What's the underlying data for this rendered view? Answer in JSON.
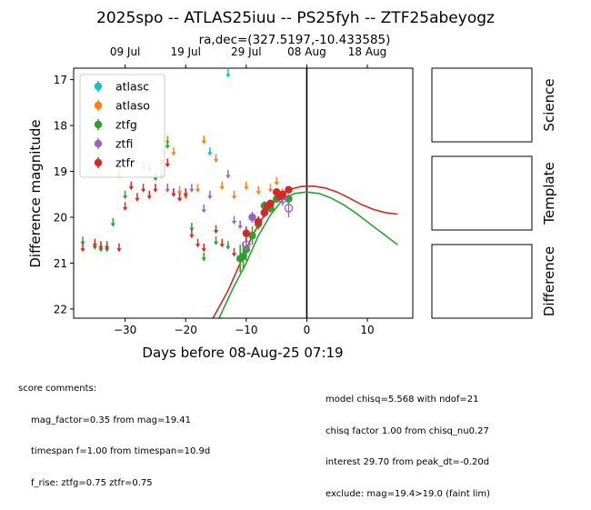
{
  "chart_data": {
    "type": "scatter",
    "title": "2025spo -- ATLAS25iuu -- PS25fyh -- ZTF25abeyogz",
    "subtitle": "ra,dec=(327.5197,-10.433585)",
    "xlabel": "Days before 08-Aug-25 07:19",
    "ylabel": "Difference magnitude",
    "xlim": [
      -38.5,
      17.5
    ],
    "ylim": [
      22.2,
      16.75
    ],
    "y_inverted": true,
    "x_ticks": [
      -30,
      -20,
      -10,
      0,
      10
    ],
    "x_tick_labels": [
      "−30",
      "−20",
      "−10",
      "0",
      "10"
    ],
    "y_ticks": [
      17,
      18,
      19,
      20,
      21,
      22
    ],
    "y_tick_labels": [
      "17",
      "18",
      "19",
      "20",
      "21",
      "22"
    ],
    "top_axis_ticks": [
      {
        "x": -30,
        "label": "09 Jul"
      },
      {
        "x": -20,
        "label": "19 Jul"
      },
      {
        "x": -10,
        "label": "29 Jul"
      },
      {
        "x": 0,
        "label": "08 Aug"
      },
      {
        "x": 10,
        "label": "18 Aug"
      }
    ],
    "vline_x": 0,
    "grid": false,
    "legend_position": "top-left",
    "series": [
      {
        "name": "atlasc",
        "color": "#17becf",
        "points": [
          {
            "x": -13.0,
            "y": 16.85,
            "kind": "upper_limit"
          },
          {
            "x": -16.0,
            "y": 18.55,
            "kind": "upper_limit"
          }
        ]
      },
      {
        "name": "atlaso",
        "color": "#ff7f0e",
        "points": [
          {
            "x": -31.0,
            "y": 19.05,
            "kind": "upper_limit"
          },
          {
            "x": -27.0,
            "y": 18.85,
            "kind": "upper_limit"
          },
          {
            "x": -26.0,
            "y": 18.9,
            "kind": "upper_limit"
          },
          {
            "x": -24.0,
            "y": 18.75,
            "kind": "upper_limit"
          },
          {
            "x": -23.0,
            "y": 18.3,
            "kind": "upper_limit"
          },
          {
            "x": -22.0,
            "y": 18.55,
            "kind": "upper_limit"
          },
          {
            "x": -21.0,
            "y": 19.4,
            "kind": "upper_limit"
          },
          {
            "x": -20.0,
            "y": 19.5,
            "kind": "upper_limit"
          },
          {
            "x": -18.0,
            "y": 19.35,
            "kind": "upper_limit"
          },
          {
            "x": -17.0,
            "y": 18.3,
            "kind": "upper_limit"
          },
          {
            "x": -15.0,
            "y": 18.7,
            "kind": "upper_limit"
          },
          {
            "x": -14.0,
            "y": 19.3,
            "kind": "upper_limit"
          },
          {
            "x": -12.0,
            "y": 19.5,
            "kind": "upper_limit"
          },
          {
            "x": -10.0,
            "y": 19.3,
            "kind": "upper_limit"
          },
          {
            "x": -8.0,
            "y": 19.4,
            "kind": "upper_limit"
          },
          {
            "x": -6.0,
            "y": 19.35,
            "kind": "upper_limit"
          },
          {
            "x": -5.0,
            "y": 19.2,
            "kind": "upper_limit"
          },
          {
            "x": -4.0,
            "y": 19.45,
            "kind": "upper_limit"
          }
        ]
      },
      {
        "name": "ztfg",
        "color": "#2ca02c",
        "points": [
          {
            "x": -37.0,
            "y": 20.5,
            "kind": "upper_limit"
          },
          {
            "x": -35.0,
            "y": 20.6,
            "kind": "upper_limit"
          },
          {
            "x": -34.0,
            "y": 20.65,
            "kind": "upper_limit"
          },
          {
            "x": -33.0,
            "y": 20.65,
            "kind": "upper_limit"
          },
          {
            "x": -32.0,
            "y": 20.1,
            "kind": "upper_limit"
          },
          {
            "x": -30.0,
            "y": 19.5,
            "kind": "upper_limit"
          },
          {
            "x": -25.0,
            "y": 19.1,
            "kind": "upper_limit"
          },
          {
            "x": -23.0,
            "y": 18.4,
            "kind": "upper_limit"
          },
          {
            "x": -20.0,
            "y": 19.45,
            "kind": "upper_limit"
          },
          {
            "x": -19.0,
            "y": 20.2,
            "kind": "upper_limit"
          },
          {
            "x": -17.0,
            "y": 20.85,
            "kind": "upper_limit"
          },
          {
            "x": -15.0,
            "y": 20.5,
            "kind": "upper_limit"
          },
          {
            "x": -13.0,
            "y": 20.6,
            "kind": "upper_limit"
          },
          {
            "x": -11.0,
            "y": 20.9,
            "kind": "detection",
            "err": 0.3
          },
          {
            "x": -10.5,
            "y": 20.85,
            "kind": "detection",
            "err": 0.3
          },
          {
            "x": -10.0,
            "y": 20.7,
            "kind": "detection",
            "err": 0.25
          },
          {
            "x": -9.0,
            "y": 20.4,
            "kind": "detection",
            "err": 0.2
          },
          {
            "x": -8.0,
            "y": 20.15,
            "kind": "detection",
            "err": 0.12
          },
          {
            "x": -7.0,
            "y": 19.75,
            "kind": "detection",
            "err": 0.1
          },
          {
            "x": -6.0,
            "y": 19.8,
            "kind": "detection",
            "err": 0.1
          },
          {
            "x": -5.0,
            "y": 19.6,
            "kind": "detection",
            "err": 0.08
          },
          {
            "x": -4.0,
            "y": 19.55,
            "kind": "detection",
            "err": 0.08
          },
          {
            "x": -3.0,
            "y": 19.6,
            "kind": "detection",
            "err": 0.1
          }
        ]
      },
      {
        "name": "ztfi",
        "color": "#9467bd",
        "points": [
          {
            "x": -24.0,
            "y": 19.05,
            "kind": "upper_limit"
          },
          {
            "x": -23.0,
            "y": 19.35,
            "kind": "upper_limit"
          },
          {
            "x": -22.0,
            "y": 19.45,
            "kind": "upper_limit"
          },
          {
            "x": -21.0,
            "y": 19.55,
            "kind": "upper_limit"
          },
          {
            "x": -19.0,
            "y": 19.35,
            "kind": "upper_limit"
          },
          {
            "x": -17.0,
            "y": 19.8,
            "kind": "upper_limit"
          },
          {
            "x": -16.0,
            "y": 19.5,
            "kind": "upper_limit"
          },
          {
            "x": -13.0,
            "y": 19.05,
            "kind": "upper_limit"
          },
          {
            "x": -12.0,
            "y": 20.05,
            "kind": "upper_limit"
          },
          {
            "x": -11.0,
            "y": 20.15,
            "kind": "upper_limit"
          },
          {
            "x": -10.0,
            "y": 20.6,
            "kind": "nondetection",
            "err": 0.15
          },
          {
            "x": -9.0,
            "y": 20.0,
            "kind": "detection",
            "err": 0.12
          },
          {
            "x": -8.0,
            "y": 20.1,
            "kind": "detection",
            "err": 0.1
          },
          {
            "x": -7.0,
            "y": 19.9,
            "kind": "detection",
            "err": 0.1
          },
          {
            "x": -4.0,
            "y": 19.6,
            "kind": "nondetection",
            "err": 0.15
          },
          {
            "x": -3.0,
            "y": 19.8,
            "kind": "nondetection",
            "err": 0.2
          }
        ]
      },
      {
        "name": "ztfr",
        "color": "#d62728",
        "points": [
          {
            "x": -37.0,
            "y": 20.65,
            "kind": "upper_limit"
          },
          {
            "x": -35.0,
            "y": 20.55,
            "kind": "upper_limit"
          },
          {
            "x": -34.0,
            "y": 20.6,
            "kind": "upper_limit"
          },
          {
            "x": -33.0,
            "y": 20.6,
            "kind": "upper_limit"
          },
          {
            "x": -31.0,
            "y": 20.65,
            "kind": "upper_limit"
          },
          {
            "x": -30.0,
            "y": 19.75,
            "kind": "upper_limit"
          },
          {
            "x": -29.0,
            "y": 19.3,
            "kind": "upper_limit"
          },
          {
            "x": -28.0,
            "y": 19.55,
            "kind": "upper_limit"
          },
          {
            "x": -27.0,
            "y": 19.35,
            "kind": "upper_limit"
          },
          {
            "x": -26.0,
            "y": 19.5,
            "kind": "upper_limit"
          },
          {
            "x": -25.0,
            "y": 19.35,
            "kind": "upper_limit"
          },
          {
            "x": -23.0,
            "y": 18.8,
            "kind": "upper_limit"
          },
          {
            "x": -22.0,
            "y": 19.45,
            "kind": "upper_limit"
          },
          {
            "x": -21.0,
            "y": 19.55,
            "kind": "upper_limit"
          },
          {
            "x": -20.0,
            "y": 19.45,
            "kind": "upper_limit"
          },
          {
            "x": -19.0,
            "y": 20.35,
            "kind": "upper_limit"
          },
          {
            "x": -18.0,
            "y": 20.55,
            "kind": "upper_limit"
          },
          {
            "x": -17.0,
            "y": 20.65,
            "kind": "upper_limit"
          },
          {
            "x": -15.0,
            "y": 20.25,
            "kind": "upper_limit"
          },
          {
            "x": -14.0,
            "y": 20.55,
            "kind": "upper_limit"
          },
          {
            "x": -12.0,
            "y": 20.75,
            "kind": "upper_limit"
          },
          {
            "x": -10.0,
            "y": 20.35,
            "kind": "detection",
            "err": 0.15
          },
          {
            "x": -8.0,
            "y": 20.1,
            "kind": "detection",
            "err": 0.12
          },
          {
            "x": -7.0,
            "y": 19.9,
            "kind": "detection",
            "err": 0.1
          },
          {
            "x": -6.5,
            "y": 19.75,
            "kind": "detection",
            "err": 0.08
          },
          {
            "x": -6.0,
            "y": 19.7,
            "kind": "detection",
            "err": 0.08
          },
          {
            "x": -5.0,
            "y": 19.45,
            "kind": "detection",
            "err": 0.07
          },
          {
            "x": -4.5,
            "y": 19.55,
            "kind": "detection",
            "err": 0.07
          },
          {
            "x": -4.0,
            "y": 19.5,
            "kind": "detection",
            "err": 0.07
          },
          {
            "x": -3.0,
            "y": 19.4,
            "kind": "detection",
            "err": 0.07
          }
        ]
      }
    ],
    "model_curves": [
      {
        "series": "ztfr",
        "color": "#d62728",
        "points": [
          [
            -15.5,
            22.2
          ],
          [
            -13,
            21.6
          ],
          [
            -11,
            21.0
          ],
          [
            -9,
            20.4
          ],
          [
            -7,
            19.95
          ],
          [
            -5,
            19.6
          ],
          [
            -3,
            19.4
          ],
          [
            -1,
            19.33
          ],
          [
            1,
            19.32
          ],
          [
            3,
            19.36
          ],
          [
            5,
            19.45
          ],
          [
            7,
            19.58
          ],
          [
            9,
            19.72
          ],
          [
            11,
            19.83
          ],
          [
            13,
            19.9
          ],
          [
            15,
            19.93
          ]
        ]
      },
      {
        "series": "ztfg",
        "color": "#2ca02c",
        "points": [
          [
            -14.5,
            22.2
          ],
          [
            -12,
            21.5
          ],
          [
            -10,
            21.0
          ],
          [
            -8,
            20.4
          ],
          [
            -6,
            19.95
          ],
          [
            -4,
            19.62
          ],
          [
            -2,
            19.48
          ],
          [
            0,
            19.45
          ],
          [
            2,
            19.48
          ],
          [
            4,
            19.58
          ],
          [
            6,
            19.72
          ],
          [
            8,
            19.9
          ],
          [
            10,
            20.1
          ],
          [
            12,
            20.3
          ],
          [
            14,
            20.5
          ],
          [
            15,
            20.6
          ]
        ]
      }
    ]
  },
  "panels": [
    {
      "label": "Science"
    },
    {
      "label": "Template"
    },
    {
      "label": "Difference"
    }
  ],
  "notes": {
    "score_header": "score comments:",
    "score_lines": [
      "mag_factor=0.35 from mag=19.41",
      "timespan f=1.00 from timespan=10.9d",
      "f_rise: ztfg=0.75 ztfr=0.75"
    ],
    "model_lines": [
      "model chisq=5.568 with ndof=21",
      "chisq factor 1.00 from chisq_nu0.27",
      "interest 29.70 from peak_dt=-0.20d",
      "exclude: mag=19.4>19.0 (faint lim)"
    ]
  }
}
